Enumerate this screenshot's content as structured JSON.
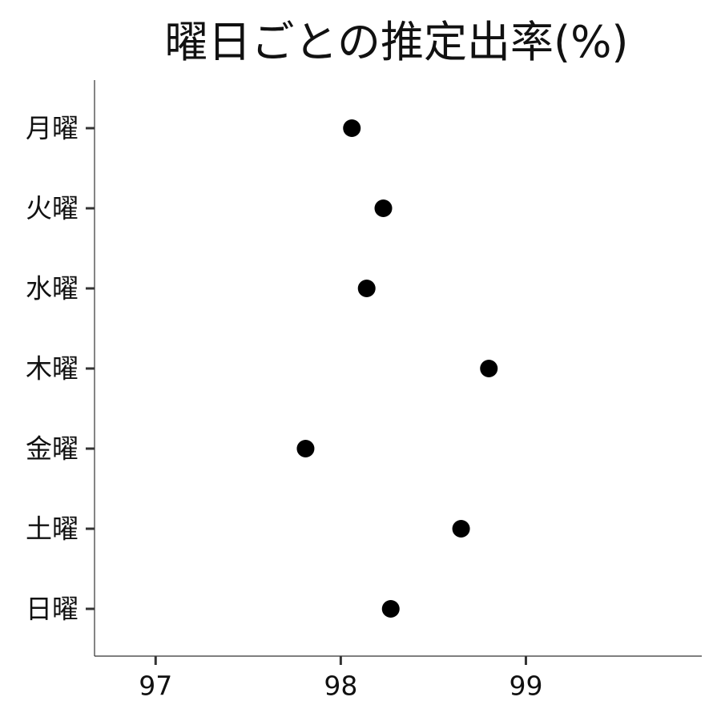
{
  "chart_data": {
    "type": "scatter",
    "title": "曜日ごとの推定出率(%)",
    "xlabel": "",
    "ylabel": "",
    "categories": [
      "月曜",
      "火曜",
      "水曜",
      "木曜",
      "金曜",
      "土曜",
      "日曜"
    ],
    "values": [
      98.06,
      98.23,
      98.14,
      98.8,
      97.81,
      98.65,
      98.27
    ],
    "xlim": [
      96.67,
      99.95
    ],
    "xticks": [
      97,
      98,
      99
    ],
    "grid": false,
    "marker_color": "#000000"
  }
}
